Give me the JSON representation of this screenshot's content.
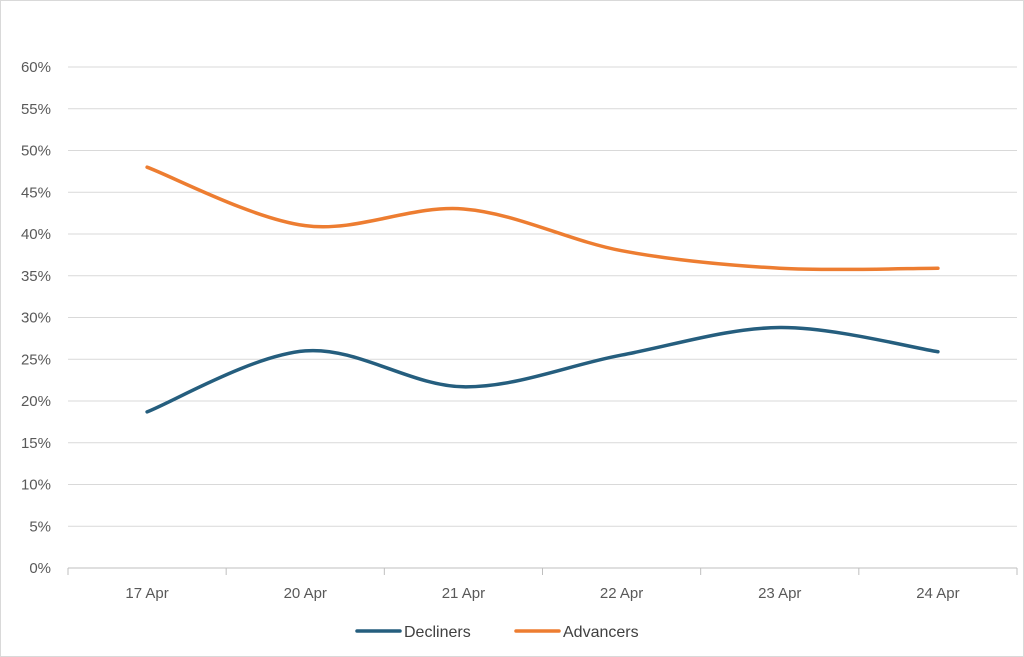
{
  "chart_data": {
    "type": "line",
    "title": "",
    "xlabel": "",
    "ylabel": "",
    "categories": [
      "17 Apr",
      "20 Apr",
      "21 Apr",
      "22 Apr",
      "23 Apr",
      "24 Apr"
    ],
    "ylim": [
      0,
      60
    ],
    "yticks": [
      0,
      5,
      10,
      15,
      20,
      25,
      30,
      35,
      40,
      45,
      50,
      55,
      60
    ],
    "ytick_format": "{}%",
    "grid": true,
    "smooth": true,
    "legend": "bottom",
    "series": [
      {
        "name": "Decliners",
        "color": "#255e7e",
        "values": [
          18.7,
          26.0,
          21.7,
          25.5,
          28.8,
          25.9
        ]
      },
      {
        "name": "Advancers",
        "color": "#ed7d31",
        "values": [
          48.0,
          41.0,
          43.0,
          38.0,
          35.9,
          35.9
        ]
      }
    ]
  }
}
